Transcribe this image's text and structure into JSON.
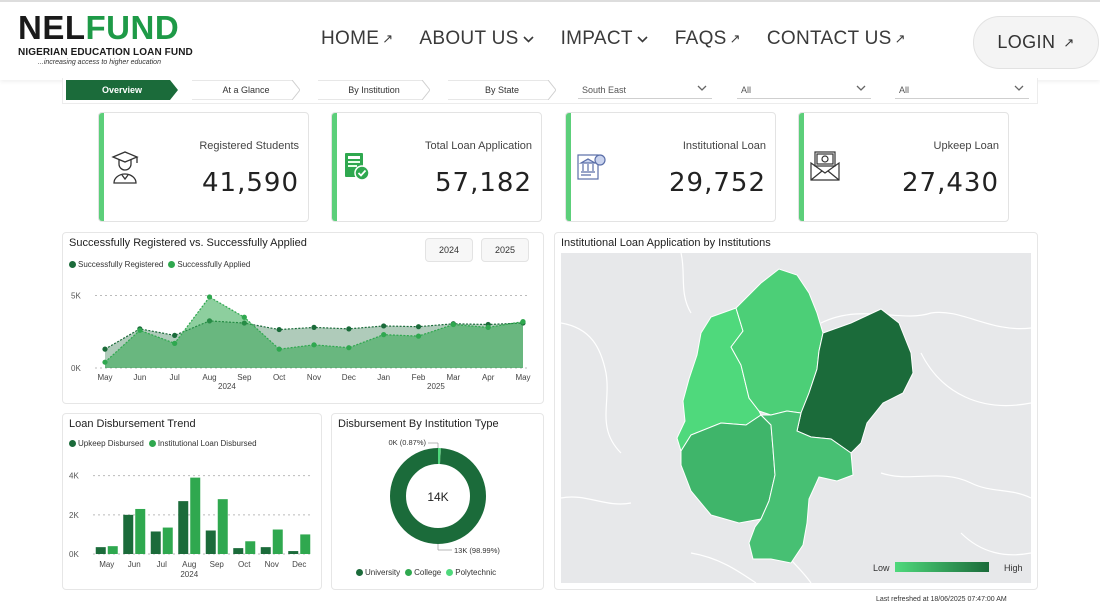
{
  "header": {
    "logo_nel": "NEL",
    "logo_fund": "FUND",
    "logo_sub": "NIGERIAN EDUCATION LOAN FUND",
    "logo_tag": "...increasing access to higher education",
    "nav": [
      {
        "label": "HOME",
        "icon": "arrow-up-right-icon",
        "glyph": "↗"
      },
      {
        "label": "ABOUT US",
        "icon": "chevron-down-icon",
        "glyph": "⌵"
      },
      {
        "label": "IMPACT",
        "icon": "chevron-down-icon",
        "glyph": "⌵"
      },
      {
        "label": "FAQS",
        "icon": "arrow-up-right-icon",
        "glyph": "↗"
      },
      {
        "label": "CONTACT US",
        "icon": "arrow-up-right-icon",
        "glyph": "↗"
      }
    ],
    "login": "LOGIN",
    "login_glyph": "↗"
  },
  "filters": {
    "tabs": [
      "Overview",
      "At a Glance",
      "By Institution",
      "By State"
    ],
    "region": "South East",
    "select2": "All",
    "select3": "All"
  },
  "kpis": [
    {
      "label": "Registered Students",
      "value": "41,590",
      "icon": "graduate-icon"
    },
    {
      "label": "Total Loan Application",
      "value": "57,182",
      "icon": "loan-document-icon"
    },
    {
      "label": "Institutional Loan",
      "value": "29,752",
      "icon": "institution-icon"
    },
    {
      "label": "Upkeep Loan",
      "value": "27,430",
      "icon": "money-envelope-icon"
    }
  ],
  "colors": {
    "accent": "#5ccf7a",
    "dark_green": "#1b6b3a",
    "mid_green": "#2fa84f",
    "light_green": "#4fd97c"
  },
  "registered_chart": {
    "title": "Successfully Registered vs. Successfully Applied",
    "legend": [
      "Successfully Registered",
      "Successfully Applied"
    ],
    "years": [
      "2024",
      "2025"
    ],
    "chart_data": {
      "type": "area",
      "x": [
        "May",
        "Jun",
        "Jul",
        "Aug",
        "Sep",
        "Oct",
        "Nov",
        "Dec",
        "Jan",
        "Feb",
        "Mar",
        "Apr",
        "May"
      ],
      "year_labels": [
        "2024",
        "2025"
      ],
      "series": [
        {
          "name": "Successfully Registered",
          "values": [
            1300,
            2700,
            2250,
            3250,
            3100,
            2650,
            2800,
            2700,
            2900,
            2850,
            3050,
            3000,
            3100
          ]
        },
        {
          "name": "Successfully Applied",
          "values": [
            400,
            2600,
            1700,
            4900,
            3500,
            1300,
            1600,
            1400,
            2300,
            2200,
            3000,
            2800,
            3200
          ]
        }
      ],
      "yticks": [
        "5K",
        "0K"
      ],
      "ylim": [
        0,
        6000
      ]
    }
  },
  "disbursement_chart": {
    "title": "Loan Disbursement Trend",
    "legend": [
      "Upkeep Disbursed",
      "Institutional Loan Disbursed"
    ],
    "chart_data": {
      "type": "bar",
      "categories": [
        "May",
        "Jun",
        "Jul",
        "Aug",
        "Sep",
        "Oct",
        "Nov",
        "Dec"
      ],
      "year_label": "2024",
      "series": [
        {
          "name": "Upkeep Disbursed",
          "values": [
            350,
            2000,
            1150,
            2700,
            1200,
            300,
            350,
            150
          ]
        },
        {
          "name": "Institutional Loan Disbursed",
          "values": [
            400,
            2300,
            1350,
            3900,
            2800,
            650,
            1250,
            1000
          ]
        }
      ],
      "yticks": [
        "4K",
        "2K",
        "0K"
      ],
      "ylim": [
        0,
        4800
      ]
    }
  },
  "donut_chart": {
    "title": "Disbursement By Institution Type",
    "center_label": "14K",
    "top_label": "0K (0.87%)",
    "bottom_label": "13K (98.99%)",
    "legend": [
      "University",
      "College",
      "Polytechnic"
    ],
    "chart_data": {
      "type": "pie",
      "labels": [
        "University",
        "College",
        "Polytechnic"
      ],
      "values": [
        98.99,
        0.14,
        0.87
      ]
    }
  },
  "map_panel": {
    "title": "Institutional Loan Application by Institutions",
    "legend_low": "Low",
    "legend_high": "High"
  },
  "footer": {
    "refresh": "Last refreshed at  18/06/2025 07:47:00 AM"
  }
}
